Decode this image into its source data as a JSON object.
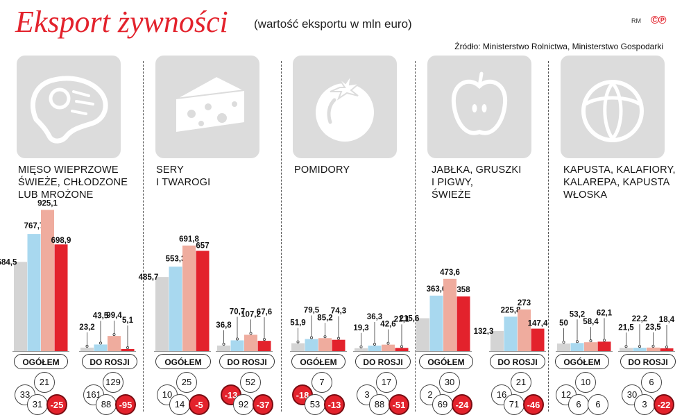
{
  "title": "Eksport żywności",
  "subtitle": "(wartość eksportu w mln euro)",
  "credit": "RM",
  "logo": "©℗",
  "source": "Źródło: Ministerstwo Rolnictwa, Ministerstwo Gospodarki",
  "colors": {
    "year1": "#d4d4d4",
    "year2": "#a8d8ef",
    "year3": "#efac9e",
    "year4": "#e3222c",
    "title": "#e3222c"
  },
  "chart_data": {
    "type": "bar",
    "title": "Eksport żywności",
    "subtitle": "(wartość eksportu w mln euro)",
    "series_names": [],
    "panels": [
      {
        "title": "MIĘSO WIEPRZOWE\nŚWIEŻE, CHŁODZONE\nLUB MROŻONE",
        "icon": "meat-steak-icon",
        "groups": [
          {
            "label": "OGÓŁEM",
            "values": [
              584.5,
              767.7,
              925.1,
              698.9
            ],
            "labels": [
              "584,5",
              "767,7",
              "925,1",
              "698,9"
            ],
            "changes": [
              "33",
              "21",
              "31",
              "-25"
            ]
          },
          {
            "label": "DO ROSJI",
            "values": [
              23.2,
              43.5,
              99.4,
              5.1
            ],
            "labels": [
              "23,2",
              "43,5",
              "99,4",
              "5,1"
            ],
            "changes": [
              "161",
              "129",
              "88",
              "-95"
            ]
          }
        ]
      },
      {
        "title": "SERY\nI TWAROGI",
        "icon": "cheese-icon",
        "groups": [
          {
            "label": "OGÓŁEM",
            "values": [
              485.7,
              553.3,
              691.8,
              657
            ],
            "labels": [
              "485,7",
              "553,3",
              "691,8",
              "657"
            ],
            "changes": [
              "10",
              "25",
              "14",
              "-5"
            ]
          },
          {
            "label": "DO ROSJI",
            "values": [
              36.8,
              70.7,
              107.2,
              67.6
            ],
            "labels": [
              "36,8",
              "70,7",
              "107,2",
              "67,6"
            ],
            "changes": [
              "-13",
              "52",
              "92",
              "-37"
            ]
          }
        ]
      },
      {
        "title": "POMIDORY",
        "icon": "tomato-icon",
        "groups": [
          {
            "label": "OGÓŁEM",
            "values": [
              51.9,
              79.5,
              85.2,
              74.3
            ],
            "labels": [
              "51,9",
              "79,5",
              "85,2",
              "74,3"
            ],
            "changes": [
              "-18",
              "7",
              "53",
              "-13"
            ]
          },
          {
            "label": "DO ROSJI",
            "values": [
              19.3,
              36.3,
              42.6,
              21.1
            ],
            "labels": [
              "19,3",
              "36,3",
              "42,6",
              "21,1"
            ],
            "changes": [
              "3",
              "17",
              "88",
              "-51"
            ]
          }
        ]
      },
      {
        "title": "JABŁKA, GRUSZKI\nI PIGWY,\nŚWIEŻE",
        "icon": "apple-icon",
        "groups": [
          {
            "label": "OGÓŁEM",
            "values": [
              215.6,
              363.6,
              473.6,
              358
            ],
            "labels": [
              "215,6",
              "363,6",
              "473,6",
              "358"
            ],
            "changes": [
              "2",
              "30",
              "69",
              "-24"
            ]
          },
          {
            "label": "DO ROSJI",
            "values": [
              132.3,
              225.8,
              273,
              147.4
            ],
            "labels": [
              "132,3",
              "225,8",
              "273",
              "147,4"
            ],
            "changes": [
              "16",
              "21",
              "71",
              "-46"
            ]
          }
        ]
      },
      {
        "title": "KAPUSTA, KALAFIORY,\nKALAREPA, KAPUSTA\nWŁOSKA",
        "icon": "cabbage-icon",
        "groups": [
          {
            "label": "OGÓŁEM",
            "values": [
              50,
              53.2,
              58.4,
              62.1
            ],
            "labels": [
              "50",
              "53,2",
              "58,4",
              "62,1"
            ],
            "changes": [
              "12",
              "10",
              "6",
              "6"
            ]
          },
          {
            "label": "DO ROSJI",
            "values": [
              21.5,
              22.2,
              23.5,
              18.4
            ],
            "labels": [
              "21,5",
              "22,2",
              "23,5",
              "18,4"
            ],
            "changes": [
              "30",
              "6",
              "3",
              "-22"
            ]
          }
        ]
      }
    ]
  }
}
